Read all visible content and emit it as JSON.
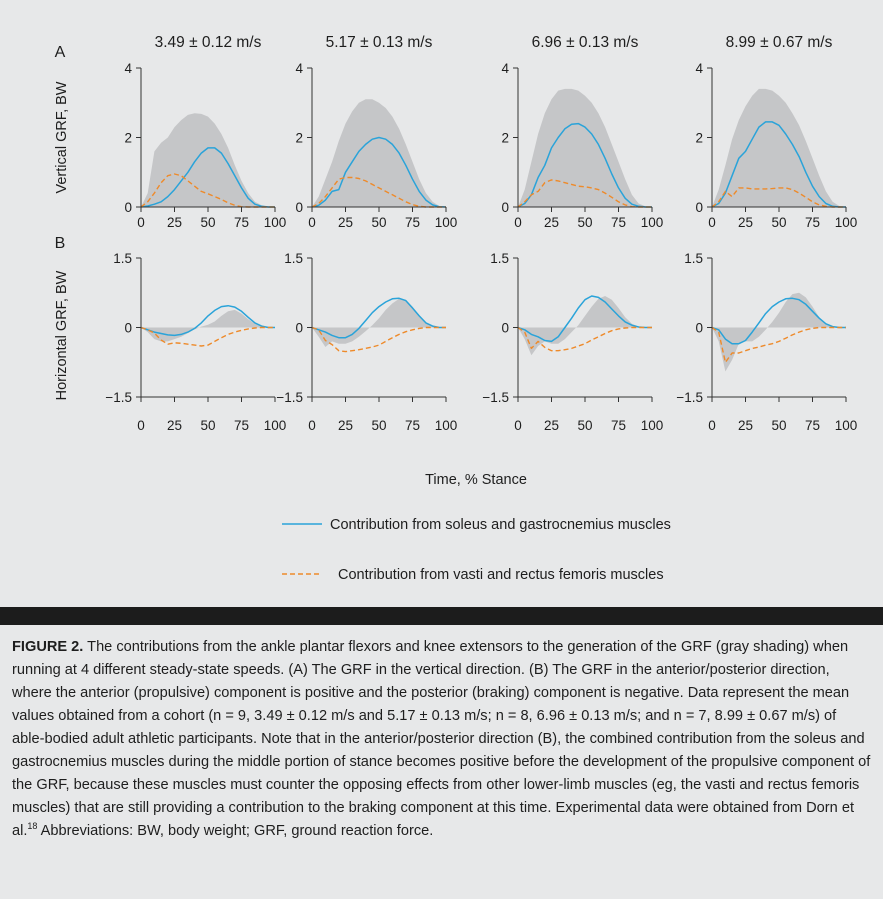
{
  "figure": {
    "panel_labels": [
      "A",
      "B"
    ],
    "x_axis_title": "Time, % Stance",
    "legend": [
      {
        "label": "Contribution from soleus and gastrocnemius muscles",
        "color": "#2aa3d9",
        "style": "solid"
      },
      {
        "label": "Contribution from vasti and rectus femoris muscles",
        "color": "#ee8a2a",
        "style": "dashed"
      }
    ]
  },
  "chart_data": [
    {
      "type": "area",
      "panel": "A",
      "speed_label": "3.49 ± 0.12 m/s",
      "ylabel": "Vertical GRF, BW",
      "xlim": [
        0,
        100
      ],
      "ylim": [
        0,
        4
      ],
      "xticks": [
        "0",
        "25",
        "50",
        "75",
        "100"
      ],
      "yticks": [
        "0",
        "2",
        "4"
      ],
      "x": [
        0,
        5,
        10,
        15,
        20,
        25,
        30,
        35,
        40,
        45,
        50,
        55,
        60,
        65,
        70,
        75,
        80,
        85,
        90,
        95,
        100
      ],
      "series": [
        {
          "values": [
            0,
            0.4,
            1.6,
            1.85,
            2.0,
            2.3,
            2.5,
            2.65,
            2.7,
            2.68,
            2.6,
            2.4,
            2.1,
            1.7,
            1.2,
            0.75,
            0.4,
            0.15,
            0.05,
            0,
            0
          ]
        },
        {
          "values": [
            0,
            0.03,
            0.08,
            0.15,
            0.3,
            0.5,
            0.75,
            1.0,
            1.3,
            1.55,
            1.7,
            1.7,
            1.55,
            1.25,
            0.9,
            0.55,
            0.25,
            0.08,
            0.02,
            0,
            0
          ]
        },
        {
          "values": [
            0,
            0.15,
            0.4,
            0.7,
            0.9,
            0.95,
            0.9,
            0.75,
            0.6,
            0.45,
            0.38,
            0.3,
            0.22,
            0.12,
            0.05,
            0.01,
            0,
            0,
            0,
            0,
            0
          ]
        }
      ]
    },
    {
      "type": "area",
      "panel": "A",
      "speed_label": "5.17 ± 0.13 m/s",
      "ylabel": "Vertical GRF, BW",
      "xlim": [
        0,
        100
      ],
      "ylim": [
        0,
        4
      ],
      "xticks": [
        "0",
        "25",
        "50",
        "75",
        "100"
      ],
      "yticks": [
        "0",
        "2",
        "4"
      ],
      "x": [
        0,
        5,
        10,
        15,
        20,
        25,
        30,
        35,
        40,
        45,
        50,
        55,
        60,
        65,
        70,
        75,
        80,
        85,
        90,
        95,
        100
      ],
      "series": [
        {
          "values": [
            0,
            0.3,
            0.8,
            1.3,
            1.9,
            2.4,
            2.75,
            3.0,
            3.1,
            3.1,
            3.0,
            2.85,
            2.6,
            2.25,
            1.8,
            1.3,
            0.8,
            0.4,
            0.15,
            0.03,
            0
          ]
        },
        {
          "values": [
            0,
            0.05,
            0.2,
            0.45,
            0.5,
            1.0,
            1.3,
            1.6,
            1.8,
            1.95,
            2.0,
            1.95,
            1.8,
            1.55,
            1.2,
            0.8,
            0.45,
            0.2,
            0.06,
            0.01,
            0
          ]
        },
        {
          "values": [
            0,
            0.1,
            0.3,
            0.55,
            0.8,
            0.85,
            0.85,
            0.82,
            0.75,
            0.65,
            0.55,
            0.45,
            0.35,
            0.25,
            0.15,
            0.07,
            0.02,
            0,
            0,
            0,
            0
          ]
        }
      ]
    },
    {
      "type": "area",
      "panel": "A",
      "speed_label": "6.96 ± 0.13 m/s",
      "ylabel": "Vertical GRF, BW",
      "xlim": [
        0,
        100
      ],
      "ylim": [
        0,
        4
      ],
      "xticks": [
        "0",
        "25",
        "50",
        "75",
        "100"
      ],
      "yticks": [
        "0",
        "2",
        "4"
      ],
      "x": [
        0,
        5,
        10,
        15,
        20,
        25,
        30,
        35,
        40,
        45,
        50,
        55,
        60,
        65,
        70,
        75,
        80,
        85,
        90,
        95,
        100
      ],
      "series": [
        {
          "values": [
            0,
            0.5,
            1.3,
            2.1,
            2.7,
            3.1,
            3.35,
            3.4,
            3.4,
            3.35,
            3.2,
            3.0,
            2.7,
            2.3,
            1.8,
            1.3,
            0.8,
            0.35,
            0.1,
            0.02,
            0
          ]
        },
        {
          "values": [
            0,
            0.1,
            0.35,
            0.85,
            1.2,
            1.7,
            2.0,
            2.25,
            2.38,
            2.4,
            2.3,
            2.1,
            1.8,
            1.4,
            0.95,
            0.55,
            0.25,
            0.08,
            0.02,
            0,
            0
          ]
        },
        {
          "values": [
            0,
            0.15,
            0.35,
            0.45,
            0.7,
            0.78,
            0.75,
            0.7,
            0.65,
            0.6,
            0.58,
            0.55,
            0.5,
            0.4,
            0.28,
            0.15,
            0.06,
            0.01,
            0,
            0,
            0
          ]
        }
      ]
    },
    {
      "type": "area",
      "panel": "A",
      "speed_label": "8.99 ± 0.67 m/s",
      "ylabel": "Vertical GRF, BW",
      "xlim": [
        0,
        100
      ],
      "ylim": [
        0,
        4
      ],
      "xticks": [
        "0",
        "25",
        "50",
        "75",
        "100"
      ],
      "yticks": [
        "0",
        "2",
        "4"
      ],
      "x": [
        0,
        5,
        10,
        15,
        20,
        25,
        30,
        35,
        40,
        45,
        50,
        55,
        60,
        65,
        70,
        75,
        80,
        85,
        90,
        95,
        100
      ],
      "series": [
        {
          "values": [
            0,
            0.5,
            1.2,
            1.95,
            2.5,
            2.9,
            3.2,
            3.4,
            3.4,
            3.35,
            3.2,
            3.0,
            2.7,
            2.35,
            1.9,
            1.4,
            0.9,
            0.45,
            0.15,
            0.03,
            0
          ]
        },
        {
          "values": [
            0,
            0.1,
            0.4,
            0.9,
            1.4,
            1.6,
            1.95,
            2.3,
            2.45,
            2.45,
            2.35,
            2.1,
            1.8,
            1.45,
            1.0,
            0.6,
            0.3,
            0.1,
            0.02,
            0,
            0
          ]
        },
        {
          "values": [
            0,
            0.15,
            0.45,
            0.3,
            0.55,
            0.55,
            0.52,
            0.52,
            0.52,
            0.53,
            0.55,
            0.55,
            0.5,
            0.4,
            0.28,
            0.15,
            0.06,
            0.02,
            0,
            0,
            0
          ]
        }
      ]
    },
    {
      "type": "area",
      "panel": "B",
      "speed_label": "3.49 ± 0.12 m/s",
      "ylabel": "Horizontal GRF, BW",
      "xlim": [
        0,
        100
      ],
      "ylim": [
        -1.5,
        1.5
      ],
      "xticks": [
        "0",
        "25",
        "50",
        "75",
        "100"
      ],
      "yticks": [
        "−1.5",
        "0",
        "1.5"
      ],
      "x": [
        0,
        5,
        10,
        15,
        20,
        25,
        30,
        35,
        40,
        45,
        50,
        55,
        60,
        65,
        70,
        75,
        80,
        85,
        90,
        95,
        100
      ],
      "series": [
        {
          "values": [
            0,
            -0.1,
            -0.25,
            -0.3,
            -0.3,
            -0.25,
            -0.2,
            -0.12,
            -0.04,
            0.02,
            0.06,
            0.13,
            0.25,
            0.35,
            0.38,
            0.3,
            0.18,
            0.08,
            0.02,
            0,
            0
          ]
        },
        {
          "values": [
            0,
            -0.05,
            -0.1,
            -0.13,
            -0.16,
            -0.17,
            -0.15,
            -0.1,
            -0.02,
            0.1,
            0.25,
            0.37,
            0.45,
            0.47,
            0.44,
            0.35,
            0.22,
            0.1,
            0.03,
            0,
            0
          ]
        },
        {
          "values": [
            0,
            -0.05,
            -0.12,
            -0.27,
            -0.36,
            -0.33,
            -0.34,
            -0.36,
            -0.38,
            -0.4,
            -0.38,
            -0.3,
            -0.22,
            -0.15,
            -0.1,
            -0.06,
            -0.03,
            -0.01,
            0,
            0,
            0
          ]
        }
      ]
    },
    {
      "type": "area",
      "panel": "B",
      "speed_label": "5.17 ± 0.13 m/s",
      "ylabel": "Horizontal GRF, BW",
      "xlim": [
        0,
        100
      ],
      "ylim": [
        -1.5,
        1.5
      ],
      "xticks": [
        "0",
        "25",
        "50",
        "75",
        "100"
      ],
      "yticks": [
        "−1.5",
        "0",
        "1.5"
      ],
      "x": [
        0,
        5,
        10,
        15,
        20,
        25,
        30,
        35,
        40,
        45,
        50,
        55,
        60,
        65,
        70,
        75,
        80,
        85,
        90,
        95,
        100
      ],
      "series": [
        {
          "values": [
            0,
            -0.2,
            -0.42,
            -0.3,
            -0.35,
            -0.35,
            -0.3,
            -0.2,
            -0.08,
            0.05,
            0.2,
            0.38,
            0.52,
            0.62,
            0.6,
            0.45,
            0.25,
            0.1,
            0.03,
            0,
            0
          ]
        },
        {
          "values": [
            0,
            -0.05,
            -0.1,
            -0.17,
            -0.22,
            -0.22,
            -0.15,
            -0.02,
            0.15,
            0.32,
            0.45,
            0.55,
            0.62,
            0.63,
            0.58,
            0.42,
            0.25,
            0.1,
            0.03,
            0,
            0
          ]
        },
        {
          "values": [
            0,
            -0.05,
            -0.28,
            -0.37,
            -0.5,
            -0.52,
            -0.5,
            -0.48,
            -0.45,
            -0.42,
            -0.38,
            -0.3,
            -0.22,
            -0.15,
            -0.09,
            -0.05,
            -0.02,
            0,
            0,
            0,
            0
          ]
        }
      ]
    },
    {
      "type": "area",
      "panel": "B",
      "speed_label": "6.96 ± 0.13 m/s",
      "ylabel": "Horizontal GRF, BW",
      "xlim": [
        0,
        100
      ],
      "ylim": [
        -1.5,
        1.5
      ],
      "xticks": [
        "0",
        "25",
        "50",
        "75",
        "100"
      ],
      "yticks": [
        "−1.5",
        "0",
        "1.5"
      ],
      "x": [
        0,
        5,
        10,
        15,
        20,
        25,
        30,
        35,
        40,
        45,
        50,
        55,
        60,
        65,
        70,
        75,
        80,
        85,
        90,
        95,
        100
      ],
      "series": [
        {
          "values": [
            0,
            -0.25,
            -0.6,
            -0.4,
            -0.3,
            -0.35,
            -0.35,
            -0.25,
            -0.1,
            0.05,
            0.25,
            0.45,
            0.62,
            0.68,
            0.6,
            0.42,
            0.22,
            0.08,
            0.02,
            0,
            0
          ]
        },
        {
          "values": [
            0,
            -0.05,
            -0.15,
            -0.2,
            -0.28,
            -0.3,
            -0.2,
            0.0,
            0.2,
            0.42,
            0.6,
            0.68,
            0.65,
            0.55,
            0.4,
            0.25,
            0.12,
            0.05,
            0.01,
            0,
            0
          ]
        },
        {
          "values": [
            0,
            -0.1,
            -0.45,
            -0.3,
            -0.43,
            -0.5,
            -0.5,
            -0.48,
            -0.45,
            -0.4,
            -0.35,
            -0.27,
            -0.2,
            -0.13,
            -0.07,
            -0.03,
            -0.01,
            0,
            0,
            0,
            0
          ]
        }
      ]
    },
    {
      "type": "area",
      "panel": "B",
      "speed_label": "8.99 ± 0.67 m/s",
      "ylabel": "Horizontal GRF, BW",
      "xlim": [
        0,
        100
      ],
      "ylim": [
        -1.5,
        1.5
      ],
      "xticks": [
        "0",
        "25",
        "50",
        "75",
        "100"
      ],
      "yticks": [
        "−1.5",
        "0",
        "1.5"
      ],
      "x": [
        0,
        5,
        10,
        15,
        20,
        25,
        30,
        35,
        40,
        45,
        50,
        55,
        60,
        65,
        70,
        75,
        80,
        85,
        90,
        95,
        100
      ],
      "series": [
        {
          "values": [
            0,
            -0.3,
            -0.95,
            -0.7,
            -0.35,
            -0.3,
            -0.3,
            -0.2,
            -0.05,
            0.12,
            0.32,
            0.55,
            0.72,
            0.75,
            0.65,
            0.45,
            0.22,
            0.08,
            0.02,
            0,
            0
          ]
        },
        {
          "values": [
            0,
            -0.05,
            -0.25,
            -0.35,
            -0.35,
            -0.28,
            -0.1,
            0.1,
            0.3,
            0.45,
            0.55,
            0.62,
            0.63,
            0.6,
            0.5,
            0.35,
            0.2,
            0.08,
            0.02,
            0,
            0
          ]
        },
        {
          "values": [
            0,
            -0.1,
            -0.75,
            -0.55,
            -0.55,
            -0.5,
            -0.45,
            -0.42,
            -0.38,
            -0.35,
            -0.3,
            -0.23,
            -0.16,
            -0.1,
            -0.05,
            -0.02,
            0,
            0,
            0,
            0,
            0
          ]
        }
      ]
    }
  ],
  "caption": {
    "label": "FIGURE 2.",
    "text_before_ref": " The contributions from the ankle plantar flexors and knee extensors to the generation of the GRF (gray shading) when running at 4 different steady-state speeds. (A) The GRF in the vertical direction. (B) The GRF in the anterior/posterior direction, where the anterior (propulsive) component is positive and the posterior (braking) component is negative. Data represent the mean values obtained from a cohort (n = 9, 3.49 ± 0.12 m/s and 5.17 ± 0.13 m/s; n = 8, 6.96 ± 0.13 m/s; and n = 7, 8.99 ± 0.67 m/s) of able-bodied adult athletic participants. Note that in the anterior/posterior direction (B), the combined contribution from the soleus and gastrocnemius muscles during the middle portion of stance becomes positive before the development of the propulsive component of the GRF, because these muscles must counter the opposing effects from other lower-limb muscles (eg, the vasti and rectus femoris muscles) that are still providing a contribution to the braking component at this time. Experimental data were obtained from Dorn et al.",
    "ref_superscript": "18",
    "text_after_ref": " Abbreviations: BW, body weight; GRF, ground reaction force."
  }
}
